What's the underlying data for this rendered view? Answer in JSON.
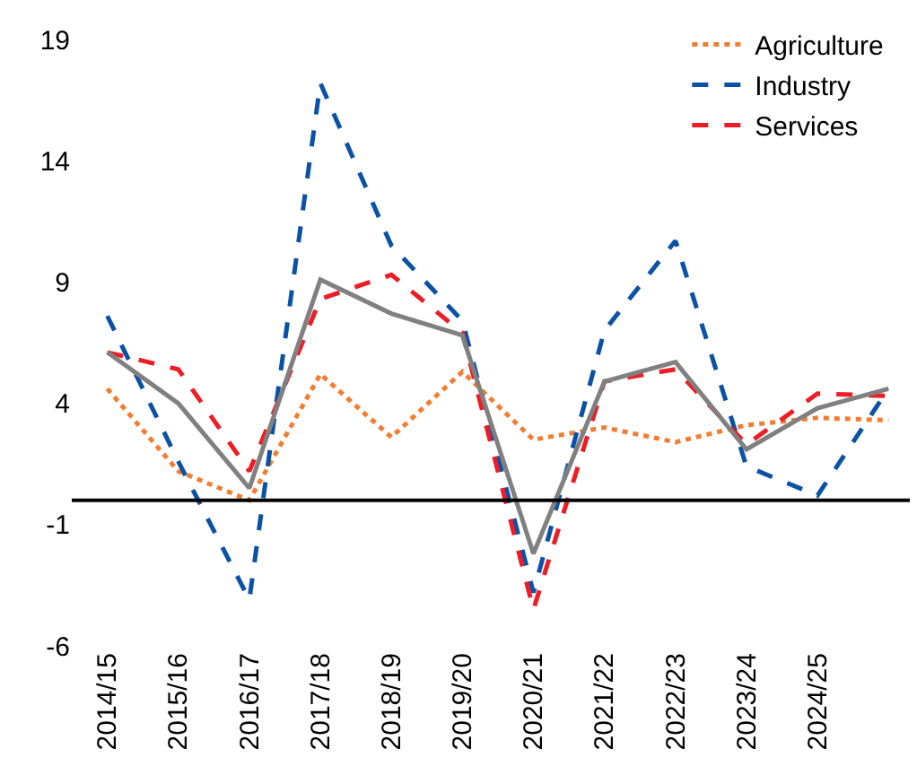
{
  "chart_data": {
    "type": "line",
    "categories": [
      "2014/15",
      "2015/16",
      "2016/17",
      "2017/18",
      "2018/19",
      "2019/20",
      "2020/21",
      "2021/22",
      "2022/23",
      "2023/24",
      "2024/25",
      null
    ],
    "series": [
      {
        "name": "Agriculture",
        "color": "#f47c30",
        "line_style": "dotted",
        "values": [
          4.6,
          1.2,
          0,
          5.2,
          2.6,
          5.3,
          2.5,
          3.0,
          2.4,
          3.1,
          3.4,
          3.3
        ]
      },
      {
        "name": "Industry",
        "color": "#0b52a6",
        "line_style": "dashed",
        "values": [
          7.6,
          1.6,
          -4.1,
          17.2,
          10.5,
          7.4,
          -3.8,
          7.0,
          10.7,
          1.4,
          0.2,
          4.6
        ]
      },
      {
        "name": "Services",
        "color": "#ee1c25",
        "line_style": "dashed",
        "values": [
          6.1,
          5.4,
          1.2,
          8.3,
          9.3,
          6.9,
          -4.5,
          4.9,
          5.4,
          2.3,
          4.4,
          4.3
        ]
      },
      {
        "color": "#808080",
        "line_style": "solid",
        "values": [
          6.1,
          4.0,
          0.5,
          9.1,
          7.7,
          6.8,
          -2.2,
          4.9,
          5.7,
          2.1,
          3.8,
          4.6
        ]
      }
    ],
    "ylim": [
      -6,
      19
    ],
    "yticks": [
      -6,
      -1,
      4,
      9,
      14,
      19
    ],
    "ref_lines": [
      {
        "axis": "y",
        "value": 0,
        "color": "#000000"
      }
    ],
    "grid": false,
    "legend": "top right",
    "marker": "none"
  }
}
